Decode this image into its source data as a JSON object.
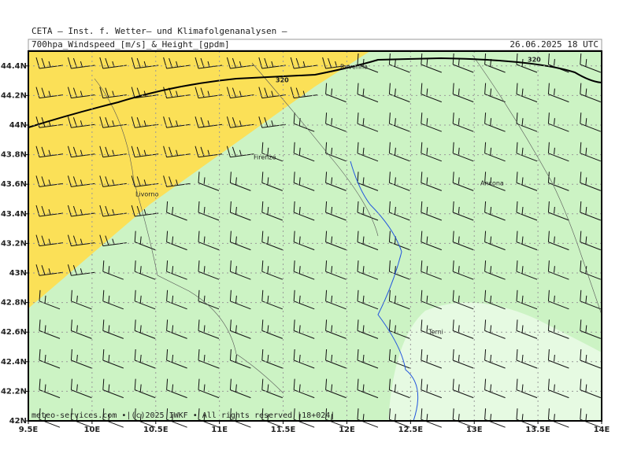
{
  "header": {
    "institute": "CETA  –  Inst. f. Wetter– und Klimafolgenanalysen –",
    "title": "700hpa_Windspeed_[m/s]_&_Height_[gpdm]",
    "date": "26.06.2025 18 UTC"
  },
  "map": {
    "x_axis": {
      "lim": [
        9.5,
        14
      ],
      "ticks": [
        {
          "value": 9.5,
          "label": "9.5E"
        },
        {
          "value": 10,
          "label": "10E"
        },
        {
          "value": 10.5,
          "label": "10.5E"
        },
        {
          "value": 11,
          "label": "11E"
        },
        {
          "value": 11.5,
          "label": "11.5E"
        },
        {
          "value": 12,
          "label": "12E"
        },
        {
          "value": 12.5,
          "label": "12.5E"
        },
        {
          "value": 13,
          "label": "13E"
        },
        {
          "value": 13.5,
          "label": "13.5E"
        },
        {
          "value": 14,
          "label": "14E"
        }
      ]
    },
    "y_axis": {
      "lim": [
        42,
        44.5
      ],
      "ticks": [
        {
          "value": 42,
          "label": "42N"
        },
        {
          "value": 42.2,
          "label": "42.2N"
        },
        {
          "value": 42.4,
          "label": "42.4N"
        },
        {
          "value": 42.6,
          "label": "42.6N"
        },
        {
          "value": 42.8,
          "label": "42.8N"
        },
        {
          "value": 43,
          "label": "43N"
        },
        {
          "value": 43.2,
          "label": "43.2N"
        },
        {
          "value": 43.4,
          "label": "43.4N"
        },
        {
          "value": 43.6,
          "label": "43.6N"
        },
        {
          "value": 43.8,
          "label": "43.8N"
        },
        {
          "value": 44,
          "label": "44N"
        },
        {
          "value": 44.2,
          "label": "44.2N"
        },
        {
          "value": 44.4,
          "label": "44.4N"
        }
      ]
    },
    "cities": [
      "Ravenna",
      "Firenze",
      "Livorno",
      "Ancona",
      "Terni"
    ],
    "contour_labels": [
      "320",
      "320"
    ],
    "footer": "meteo-services.com  •|(c)2025 IWKF • All rights reserved |18+024|"
  }
}
